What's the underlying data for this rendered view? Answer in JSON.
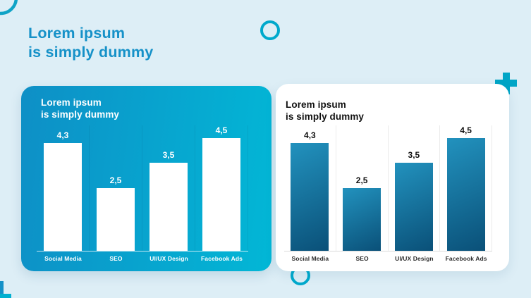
{
  "page": {
    "title_line1": "Lorem ipsum",
    "title_line2": "is simply dummy",
    "colors": {
      "background": "#ddeef6",
      "title": "#1591c8",
      "decor": "#00a9cc",
      "teal_card_gradient": [
        "#0e8fc6",
        "#02b7d6"
      ],
      "blue_bar_gradient": [
        "#2292be",
        "#0a5078"
      ]
    }
  },
  "decorations": {
    "corner_arc": "quarter-circle-outline-top-left",
    "circle_top": "circle-outline",
    "circle_bottom": "circle-outline",
    "plus": "plus-sign",
    "corner_bracket": "l-bracket-bottom-left"
  },
  "chart_data": [
    {
      "type": "bar",
      "title": "Lorem ipsum is simply dummy",
      "title_line1": "Lorem ipsum",
      "title_line2": "is simply dummy",
      "categories": [
        "Social Media",
        "SEO",
        "UI/UX Design",
        "Facebook Ads"
      ],
      "values": [
        4.3,
        2.5,
        3.5,
        4.5
      ],
      "value_labels": [
        "4,3",
        "2,5",
        "3,5",
        "4,5"
      ],
      "ylim": [
        0,
        5
      ],
      "xlabel": "",
      "ylabel": "",
      "legend": "none",
      "grid": "vertical-dividers",
      "bar_style": "solid-white-on-teal-gradient-card"
    },
    {
      "type": "bar",
      "title": "Lorem ipsum is simply dummy",
      "title_line1": "Lorem ipsum",
      "title_line2": "is simply dummy",
      "categories": [
        "Social Media",
        "SEO",
        "UI/UX Design",
        "Facebook Ads"
      ],
      "values": [
        4.3,
        2.5,
        3.5,
        4.5
      ],
      "value_labels": [
        "4,3",
        "2,5",
        "3,5",
        "4,5"
      ],
      "ylim": [
        0,
        5
      ],
      "xlabel": "",
      "ylabel": "",
      "legend": "none",
      "grid": "vertical-dividers",
      "bar_style": "blue-gradient-on-white-card"
    }
  ]
}
